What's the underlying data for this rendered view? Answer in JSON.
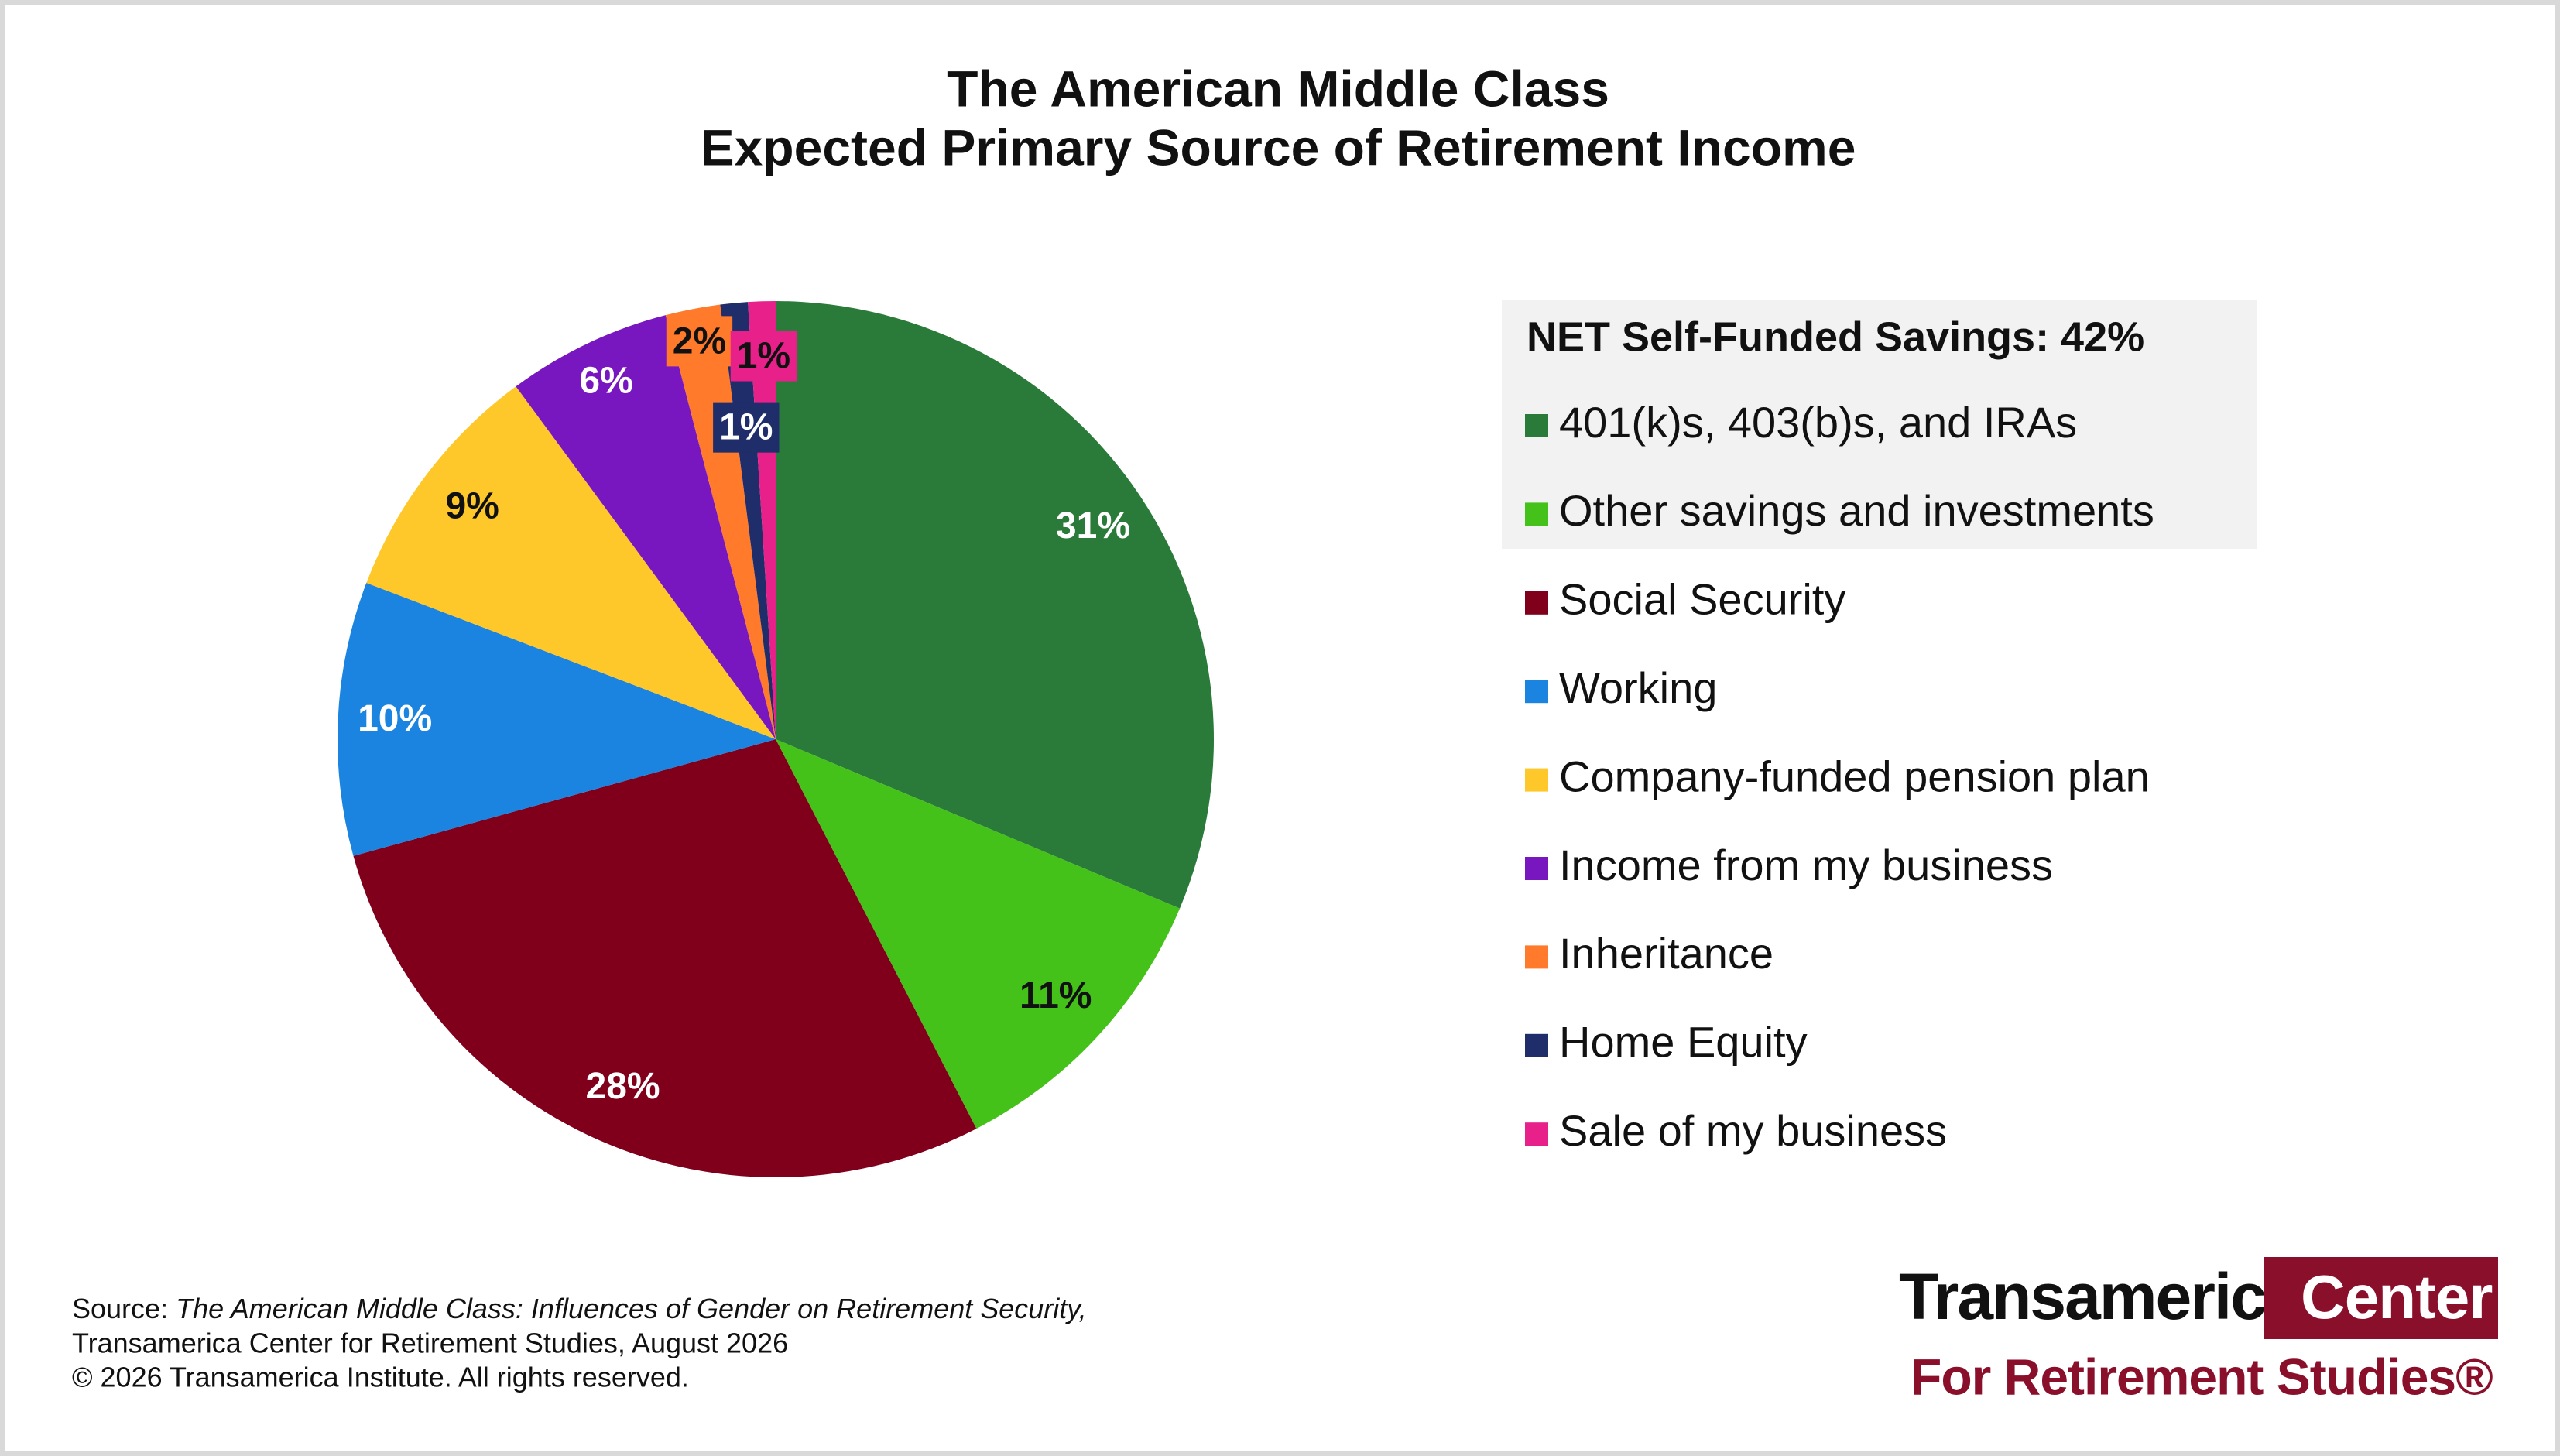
{
  "chart_data": {
    "type": "pie",
    "title": "The American Middle Class",
    "subtitle": "Expected Primary Source of Retirement Income",
    "legend_title": "NET Self-Funded Savings: 42%",
    "categories": [
      "401(k)s, 403(b)s, and IRAs",
      "Other savings and investments",
      "Social Security",
      "Working",
      "Company-funded pension plan",
      "Income from my business",
      "Inheritance",
      "Home Equity",
      "Sale of my business"
    ],
    "values": [
      31,
      11,
      28,
      10,
      9,
      6,
      2,
      1,
      1
    ],
    "value_labels": [
      "31%",
      "11%",
      "28%",
      "10%",
      "9%",
      "6%",
      "2%",
      "1%",
      "1%"
    ],
    "colors": [
      "#2a7b3a",
      "#45c21a",
      "#80001c",
      "#1a84e0",
      "#ffc82a",
      "#7817c0",
      "#ff7a2a",
      "#1f2d6b",
      "#e8208a"
    ],
    "label_colors": [
      "#ffffff",
      "#111111",
      "#ffffff",
      "#ffffff",
      "#111111",
      "#ffffff",
      "#111111",
      "#ffffff",
      "#111111"
    ]
  },
  "source": {
    "label": "Source:",
    "title": "The American Middle Class: Influences of Gender on Retirement Security,",
    "lines": [
      "Transamerica Center for Retirement Studies, August 2026",
      "© 2026 Transamerica Institute. All rights reserved."
    ]
  },
  "logo": {
    "name": "Transamerica",
    "center": "Center",
    "subtitle": "For Retirement Studies®"
  }
}
